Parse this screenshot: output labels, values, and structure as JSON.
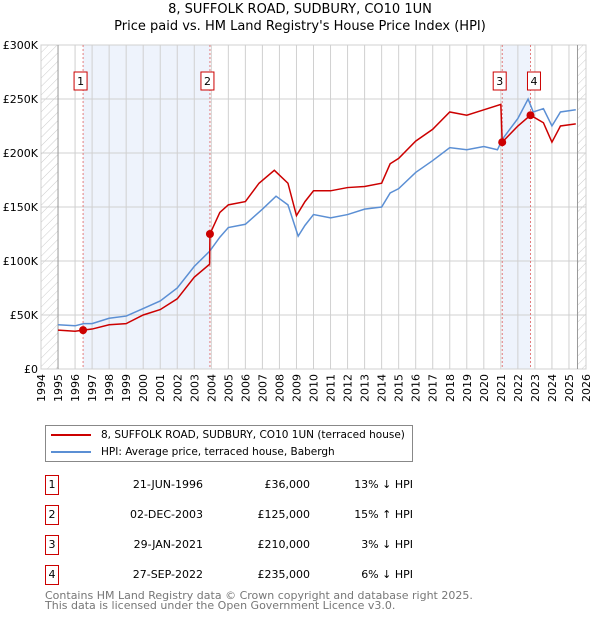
{
  "chart_data": {
    "type": "line",
    "title": "8, SUFFOLK ROAD, SUDBURY, CO10 1UN",
    "subtitle": "Price paid vs. HM Land Registry's House Price Index (HPI)",
    "xlim": [
      1994,
      2026
    ],
    "ylim": [
      0,
      300000
    ],
    "x_ticks": [
      "1994",
      "1995",
      "1996",
      "1997",
      "1998",
      "1999",
      "2000",
      "2001",
      "2002",
      "2003",
      "2004",
      "2005",
      "2006",
      "2007",
      "2008",
      "2009",
      "2010",
      "2011",
      "2012",
      "2013",
      "2014",
      "2015",
      "2016",
      "2017",
      "2018",
      "2019",
      "2020",
      "2021",
      "2022",
      "2023",
      "2024",
      "2025",
      "2026"
    ],
    "y_ticks": [
      {
        "v": 0,
        "l": "£0"
      },
      {
        "v": 50000,
        "l": "£50K"
      },
      {
        "v": 100000,
        "l": "£100K"
      },
      {
        "v": 150000,
        "l": "£150K"
      },
      {
        "v": 200000,
        "l": "£200K"
      },
      {
        "v": 250000,
        "l": "£250K"
      },
      {
        "v": 300000,
        "l": "£300K"
      }
    ],
    "colors": {
      "property": "#cc0000",
      "hpi": "#5b8fd4",
      "band": "#eef3fc"
    },
    "series": [
      {
        "name": "8, SUFFOLK ROAD, SUDBURY, CO10 1UN (terraced house)",
        "key": "property",
        "x": [
          1995,
          1996,
          1996.47,
          1997,
          1998,
          1999,
          2000,
          2001,
          2002,
          2003,
          2003.9,
          2003.92,
          2004.5,
          2005,
          2006,
          2006.8,
          2007.7,
          2008.5,
          2009,
          2009.5,
          2010,
          2011,
          2012,
          2013,
          2014,
          2014.5,
          2015,
          2016,
          2017,
          2018,
          2019,
          2020,
          2021,
          2021.08,
          2022,
          2022.74,
          2023.5,
          2024,
          2024.5,
          2025.4
        ],
        "y": [
          36000,
          35000,
          36000,
          37000,
          41000,
          42000,
          50000,
          55000,
          65000,
          85000,
          97000,
          125000,
          145000,
          152000,
          155000,
          172000,
          184000,
          172000,
          142000,
          155000,
          165000,
          165000,
          168000,
          169000,
          172000,
          190000,
          195000,
          211000,
          222000,
          238000,
          235000,
          240000,
          245000,
          210000,
          225000,
          235000,
          228000,
          210000,
          225000,
          227000
        ]
      },
      {
        "name": "HPI: Average price, terraced house, Babergh",
        "key": "hpi",
        "x": [
          1995,
          1996,
          1996.5,
          1997,
          1998,
          1999,
          2000,
          2001,
          2002,
          2003,
          2003.9,
          2004.5,
          2005,
          2006,
          2007,
          2007.8,
          2008.5,
          2009.1,
          2009.5,
          2010,
          2011,
          2012,
          2013,
          2014,
          2014.5,
          2015,
          2016,
          2017,
          2018,
          2019,
          2020,
          2020.8,
          2021.1,
          2022,
          2022.6,
          2022.9,
          2023.5,
          2024,
          2024.5,
          2025.4
        ],
        "y": [
          41000,
          40000,
          42000,
          42000,
          47000,
          49000,
          56000,
          63000,
          75000,
          95000,
          109000,
          122000,
          131000,
          134000,
          148000,
          160000,
          152000,
          123000,
          133000,
          143000,
          140000,
          143000,
          148000,
          150000,
          163000,
          167000,
          182000,
          193000,
          205000,
          203000,
          206000,
          203000,
          213000,
          232000,
          250000,
          238000,
          241000,
          225000,
          238000,
          240000
        ]
      }
    ],
    "sales": [
      {
        "n": "1",
        "x": 1996.47,
        "y": 36000,
        "date": "21-JUN-1996",
        "price": "£36,000",
        "hpi": "13% ↓ HPI"
      },
      {
        "n": "2",
        "x": 2003.92,
        "y": 125000,
        "date": "02-DEC-2003",
        "price": "£125,000",
        "hpi": "15% ↑ HPI"
      },
      {
        "n": "3",
        "x": 2021.08,
        "y": 210000,
        "date": "29-JAN-2021",
        "price": "£210,000",
        "hpi": "3% ↓ HPI"
      },
      {
        "n": "4",
        "x": 2022.74,
        "y": 235000,
        "date": "27-SEP-2022",
        "price": "£235,000",
        "hpi": "6% ↓ HPI"
      }
    ]
  },
  "footer": {
    "line1": "Contains HM Land Registry data © Crown copyright and database right 2025.",
    "line2": "This data is licensed under the Open Government Licence v3.0."
  }
}
